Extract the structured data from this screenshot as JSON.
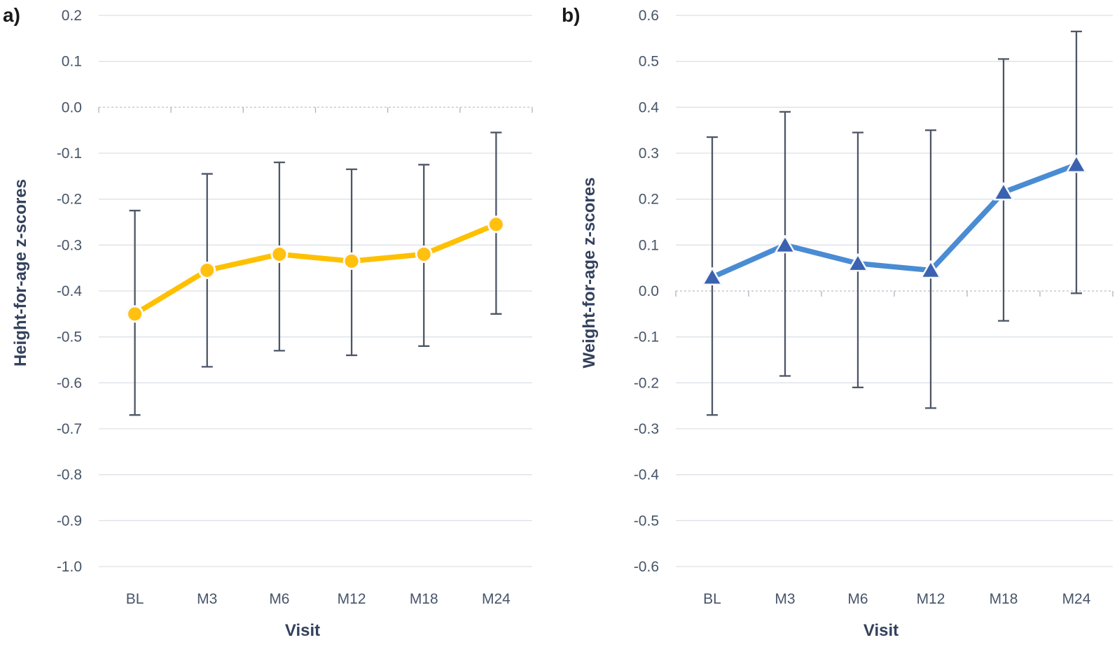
{
  "figure": {
    "description": "Two line charts of growth z-scores by study visit with error bars"
  },
  "style": {
    "background": "#ffffff",
    "gridline_color": "#dde1e6",
    "zero_line_color": "#c4c9cf",
    "axis_tick_color": "#aeb4bc",
    "error_bar_color": "#4d5666",
    "tick_text_color": "#475569",
    "axis_title_color": "#33415c",
    "panel_label_color": "#1a1a1a"
  },
  "chart_data": [
    {
      "type": "line",
      "panel_label": "a)",
      "ylabel": "Height-for-age z-scores",
      "xlabel": "Visit",
      "categories": [
        "BL",
        "M3",
        "M6",
        "M12",
        "M18",
        "M24"
      ],
      "yticks": [
        "0.2",
        "0.1",
        "0.0",
        "-0.1",
        "-0.2",
        "-0.3",
        "-0.4",
        "-0.5",
        "-0.6",
        "-0.7",
        "-0.8",
        "-0.9",
        "-1.0"
      ],
      "ylim": [
        -1.0,
        0.2
      ],
      "grid": true,
      "legend": "none",
      "series": [
        {
          "name": "Height-for-age z-score",
          "marker": "circle",
          "line_color": "#FFC000",
          "marker_color": "#FFC010",
          "values": [
            -0.45,
            -0.355,
            -0.32,
            -0.335,
            -0.32,
            -0.255
          ],
          "error_upper": [
            -0.225,
            -0.145,
            -0.12,
            -0.135,
            -0.125,
            -0.055
          ],
          "error_lower": [
            -0.67,
            -0.565,
            -0.53,
            -0.54,
            -0.52,
            -0.45
          ]
        }
      ]
    },
    {
      "type": "line",
      "panel_label": "b)",
      "ylabel": "Weight-for-age z-scores",
      "xlabel": "Visit",
      "categories": [
        "BL",
        "M3",
        "M6",
        "M12",
        "M18",
        "M24"
      ],
      "yticks": [
        "0.6",
        "0.5",
        "0.4",
        "0.3",
        "0.2",
        "0.1",
        "0.0",
        "-0.1",
        "-0.2",
        "-0.3",
        "-0.4",
        "-0.5",
        "-0.6"
      ],
      "ylim": [
        -0.6,
        0.6
      ],
      "grid": true,
      "legend": "none",
      "series": [
        {
          "name": "Weight-for-age z-score",
          "marker": "triangle",
          "line_color": "#4A8CD3",
          "marker_color": "#3A62B0",
          "values": [
            0.03,
            0.1,
            0.06,
            0.045,
            0.215,
            0.275
          ],
          "error_upper": [
            0.335,
            0.39,
            0.345,
            0.35,
            0.505,
            0.565
          ],
          "error_lower": [
            -0.27,
            -0.185,
            -0.21,
            -0.255,
            -0.065,
            -0.005
          ]
        }
      ]
    }
  ]
}
